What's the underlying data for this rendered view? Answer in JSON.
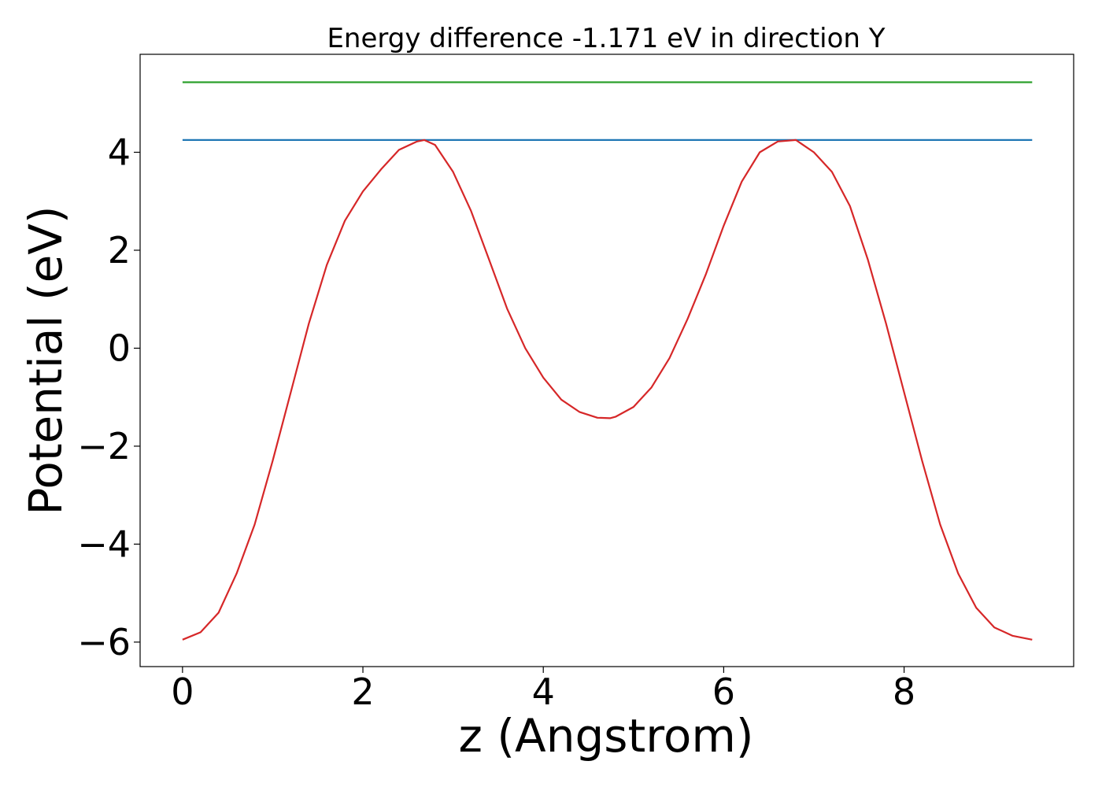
{
  "chart_data": {
    "type": "line",
    "title": "Energy difference -1.171 eV in direction Y",
    "xlabel": "z (Angstrom)",
    "ylabel": "Potential (eV)",
    "xlim": [
      -0.47,
      9.88
    ],
    "ylim": [
      -6.5,
      6.0
    ],
    "x_ticks": [
      0,
      2,
      4,
      6,
      8
    ],
    "x_tick_labels": [
      "0",
      "2",
      "4",
      "6",
      "8"
    ],
    "y_ticks": [
      -6,
      -4,
      -2,
      0,
      2,
      4
    ],
    "y_tick_labels": [
      "−6",
      "−4",
      "−2",
      "0",
      "2",
      "4"
    ],
    "grid": false,
    "series": [
      {
        "color": "#2ca02c",
        "x": [
          0,
          9.42
        ],
        "y": [
          5.43,
          5.43
        ]
      },
      {
        "color": "#1f77b4",
        "x": [
          0,
          9.42
        ],
        "y": [
          4.25,
          4.25
        ]
      },
      {
        "color": "#d62728",
        "x": [
          0,
          0.2,
          0.4,
          0.6,
          0.8,
          1.0,
          1.2,
          1.4,
          1.6,
          1.8,
          2.0,
          2.2,
          2.4,
          2.6,
          2.68,
          2.8,
          3.0,
          3.2,
          3.4,
          3.6,
          3.8,
          4.0,
          4.2,
          4.4,
          4.6,
          4.74,
          4.8,
          5.0,
          5.2,
          5.4,
          5.6,
          5.8,
          6.0,
          6.2,
          6.4,
          6.6,
          6.8,
          7.0,
          7.2,
          7.4,
          7.6,
          7.8,
          8.0,
          8.2,
          8.4,
          8.6,
          8.8,
          9.0,
          9.2,
          9.42
        ],
        "y": [
          -5.95,
          -5.8,
          -5.4,
          -4.6,
          -3.6,
          -2.3,
          -0.9,
          0.5,
          1.7,
          2.6,
          3.2,
          3.65,
          4.05,
          4.22,
          4.25,
          4.15,
          3.6,
          2.8,
          1.8,
          0.8,
          0.0,
          -0.6,
          -1.05,
          -1.3,
          -1.42,
          -1.43,
          -1.4,
          -1.2,
          -0.8,
          -0.2,
          0.6,
          1.5,
          2.5,
          3.4,
          4.0,
          4.22,
          4.25,
          4.0,
          3.6,
          2.9,
          1.8,
          0.5,
          -0.9,
          -2.3,
          -3.6,
          -4.6,
          -5.3,
          -5.7,
          -5.87,
          -5.95
        ]
      }
    ]
  }
}
